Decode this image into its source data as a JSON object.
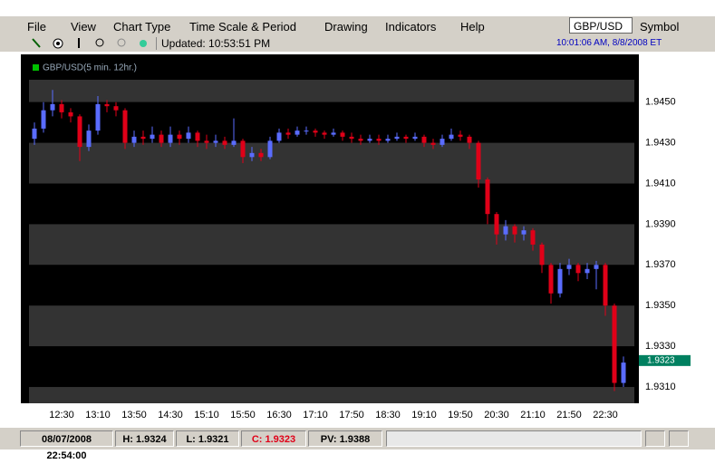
{
  "menu": [
    "File",
    "View",
    "Chart Type",
    "Time Scale & Period",
    "Drawing",
    "Indicators",
    "Help"
  ],
  "symbol_input": "GBP/USD",
  "symbol_button": "Symbol",
  "toolbar": {
    "updated": "Updated: 10:53:51 PM",
    "clock": "10:01:06 AM, 8/8/2008 ET"
  },
  "chart_data": {
    "type": "candlestick",
    "title": "GBP/USD(5 min.  12hr.)",
    "title_color": "#00c000",
    "up_color": "#5a6cff",
    "down_color": "#e00018",
    "categories": [
      null,
      null,
      null,
      "12:30",
      null,
      null,
      null,
      "13:10",
      null,
      null,
      null,
      "13:50",
      null,
      null,
      null,
      "14:30",
      null,
      null,
      null,
      "15:10",
      null,
      null,
      null,
      "15:50",
      null,
      null,
      null,
      "16:30",
      null,
      null,
      null,
      "17:10",
      null,
      null,
      null,
      "17:50",
      null,
      null,
      null,
      "18:30",
      null,
      null,
      null,
      "19:10",
      null,
      null,
      null,
      "19:50",
      null,
      null,
      null,
      "20:30",
      null,
      null,
      null,
      "21:10",
      null,
      null,
      null,
      "21:50",
      null,
      null,
      null,
      "22:30",
      null,
      null
    ],
    "open": [
      1.9432,
      1.9437,
      1.9446,
      1.9449,
      1.9445,
      1.9443,
      1.9428,
      1.9436,
      1.9449,
      1.9448,
      1.9446,
      1.943,
      1.9433,
      1.9432,
      1.9434,
      1.943,
      1.9434,
      1.9432,
      1.9435,
      1.9431,
      1.943,
      1.9431,
      1.9429,
      1.9431,
      1.9423,
      1.9425,
      1.9423,
      1.9431,
      1.9435,
      1.9434,
      1.9436,
      1.9436,
      1.9435,
      1.9434,
      1.9435,
      1.9433,
      1.9432,
      1.9431,
      1.9432,
      1.9431,
      1.9432,
      1.9433,
      1.9432,
      1.9433,
      1.943,
      1.9429,
      1.9432,
      1.9434,
      1.9433,
      1.943,
      1.9412,
      1.9395,
      1.9385,
      1.9389,
      1.9385,
      1.9387,
      1.938,
      1.937,
      1.9356,
      1.9368,
      1.937,
      1.9366,
      1.9368,
      1.937,
      1.935,
      1.9312
    ],
    "high": [
      1.944,
      1.945,
      1.9456,
      1.9451,
      1.9447,
      1.9444,
      1.9439,
      1.9453,
      1.9451,
      1.945,
      1.9447,
      1.9436,
      1.9436,
      1.9438,
      1.9436,
      1.9438,
      1.9436,
      1.9438,
      1.9436,
      1.9434,
      1.9434,
      1.9433,
      1.9442,
      1.9432,
      1.9428,
      1.9427,
      1.9433,
      1.9437,
      1.9437,
      1.9438,
      1.9438,
      1.9437,
      1.9436,
      1.9437,
      1.9436,
      1.9435,
      1.9434,
      1.9434,
      1.9434,
      1.9434,
      1.9435,
      1.9434,
      1.9435,
      1.9434,
      1.9432,
      1.9434,
      1.9437,
      1.9436,
      1.9434,
      1.9431,
      1.9413,
      1.9396,
      1.9392,
      1.939,
      1.9389,
      1.9388,
      1.9381,
      1.9371,
      1.9371,
      1.9373,
      1.9371,
      1.9371,
      1.9372,
      1.9371,
      1.9351,
      1.9325
    ],
    "low": [
      1.9429,
      1.9435,
      1.9443,
      1.9442,
      1.944,
      1.9421,
      1.9426,
      1.9434,
      1.9445,
      1.9443,
      1.9427,
      1.9428,
      1.9429,
      1.943,
      1.9428,
      1.9428,
      1.9429,
      1.943,
      1.9428,
      1.9427,
      1.9428,
      1.9427,
      1.9428,
      1.942,
      1.9421,
      1.9421,
      1.9422,
      1.943,
      1.9432,
      1.9433,
      1.9434,
      1.9433,
      1.9432,
      1.9433,
      1.9431,
      1.943,
      1.9429,
      1.943,
      1.9429,
      1.943,
      1.9431,
      1.943,
      1.9431,
      1.9428,
      1.9427,
      1.9428,
      1.9431,
      1.9431,
      1.9427,
      1.9408,
      1.939,
      1.938,
      1.9382,
      1.9381,
      1.9382,
      1.9377,
      1.9366,
      1.9351,
      1.9354,
      1.9365,
      1.9362,
      1.9363,
      1.9358,
      1.9345,
      1.9308,
      1.931
    ],
    "close": [
      1.9437,
      1.9446,
      1.9449,
      1.9445,
      1.9443,
      1.9428,
      1.9436,
      1.9449,
      1.9448,
      1.9446,
      1.943,
      1.9433,
      1.9432,
      1.9434,
      1.943,
      1.9434,
      1.9432,
      1.9435,
      1.9431,
      1.943,
      1.9431,
      1.9429,
      1.9431,
      1.9423,
      1.9425,
      1.9423,
      1.9431,
      1.9435,
      1.9434,
      1.9436,
      1.9436,
      1.9435,
      1.9434,
      1.9435,
      1.9433,
      1.9432,
      1.9431,
      1.9432,
      1.9431,
      1.9432,
      1.9433,
      1.9432,
      1.9433,
      1.943,
      1.9429,
      1.9432,
      1.9434,
      1.9433,
      1.943,
      1.9412,
      1.9395,
      1.9385,
      1.9389,
      1.9385,
      1.9387,
      1.938,
      1.937,
      1.9356,
      1.9368,
      1.937,
      1.9366,
      1.9368,
      1.937,
      1.935,
      1.9312,
      1.9322
    ],
    "ylim": [
      1.9302,
      1.9461
    ],
    "yticks": [
      {
        "value": 1.945,
        "label": "1.9450"
      },
      {
        "value": 1.943,
        "label": "1.9430"
      },
      {
        "value": 1.941,
        "label": "1.9410"
      },
      {
        "value": 1.939,
        "label": "1.9390"
      },
      {
        "value": 1.937,
        "label": "1.9370"
      },
      {
        "value": 1.935,
        "label": "1.9350"
      },
      {
        "value": 1.933,
        "label": "1.9330"
      },
      {
        "value": 1.931,
        "label": "1.9310"
      }
    ],
    "band_colors": [
      "#000000",
      "#333333"
    ],
    "last_price": 1.9323,
    "last_price_color": "#008060"
  },
  "status_bar": [
    "08/07/2008 22:54:00",
    "H: 1.9324",
    "L: 1.9321",
    "C: 1.9323",
    "PV: 1.9388"
  ]
}
